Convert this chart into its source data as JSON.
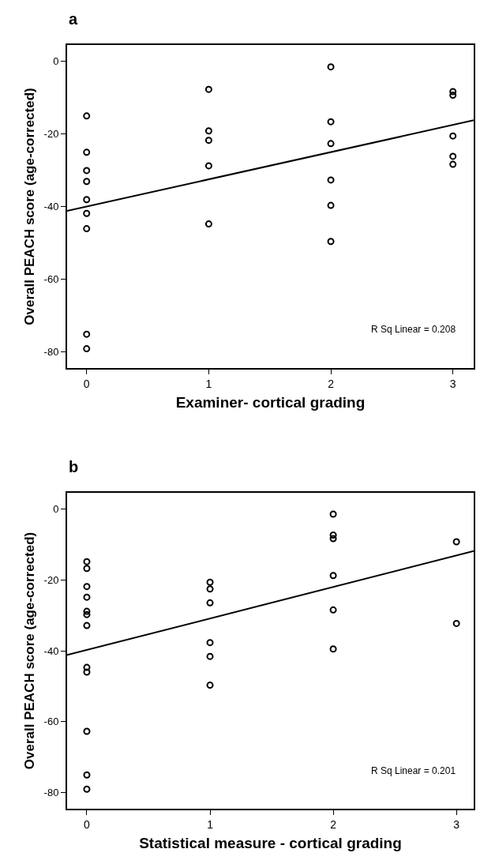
{
  "chart_data": [
    {
      "type": "scatter",
      "title": "a",
      "xlabel": "Examiner- cortical grading",
      "ylabel": "Overall PEACH score (age-corrected)",
      "xlim": [
        -0.16,
        3.17
      ],
      "ylim": [
        -84.4,
        4.4
      ],
      "xticks": [
        0,
        1,
        2,
        3
      ],
      "yticks": [
        0,
        -20,
        -40,
        -60,
        -80
      ],
      "annotations": [
        "R Sq Linear = 0.208"
      ],
      "series": [
        {
          "marker": "circle",
          "color": "#000000",
          "x": [
            0,
            0,
            0,
            0,
            0,
            0,
            0,
            0,
            0,
            1,
            1,
            1,
            1,
            1,
            2,
            2,
            2,
            2,
            2,
            2,
            3,
            3,
            3,
            3,
            3
          ],
          "values": [
            -15.1,
            -25.1,
            -30.1,
            -33.1,
            -38.1,
            -41.9,
            -46.1,
            -75.1,
            -79.1,
            -7.8,
            -19.2,
            -21.8,
            -28.8,
            -44.8,
            -1.6,
            -16.7,
            -22.7,
            -32.7,
            -39.7,
            -49.6,
            -8.4,
            -9.4,
            -20.6,
            -26.2,
            -28.4
          ]
        },
        {
          "type": "line",
          "color": "#000000",
          "x": [
            -0.16,
            3.17
          ],
          "values": [
            -41.2,
            -16.3
          ]
        }
      ]
    },
    {
      "type": "scatter",
      "title": "b",
      "xlabel": "Statistical measure - cortical grading",
      "ylabel": "Overall PEACH score (age-corrected)",
      "xlim": [
        -0.16,
        3.14
      ],
      "ylim": [
        -84.5,
        4.5
      ],
      "xticks": [
        0,
        1,
        2,
        3
      ],
      "yticks": [
        0,
        -20,
        -40,
        -60,
        -80
      ],
      "annotations": [
        "R Sq Linear = 0.201"
      ],
      "series": [
        {
          "marker": "circle",
          "color": "#000000",
          "x": [
            0,
            0,
            0,
            0,
            0,
            0,
            0,
            0,
            0,
            0,
            0,
            0,
            1,
            1,
            1,
            1,
            1,
            1,
            2,
            2,
            2,
            2,
            2,
            2,
            3,
            3
          ],
          "values": [
            -14.9,
            -16.8,
            -21.9,
            -24.9,
            -28.9,
            -29.8,
            -32.9,
            -44.7,
            -46.0,
            -62.7,
            -75.0,
            -79.0,
            -20.7,
            -22.6,
            -26.5,
            -37.7,
            -41.6,
            -49.7,
            -1.5,
            -7.4,
            -8.4,
            -18.8,
            -28.5,
            -39.5,
            -9.3,
            -32.3
          ]
        },
        {
          "type": "line",
          "color": "#000000",
          "x": [
            -0.16,
            3.14
          ],
          "values": [
            -41.2,
            -11.9
          ]
        }
      ]
    }
  ]
}
